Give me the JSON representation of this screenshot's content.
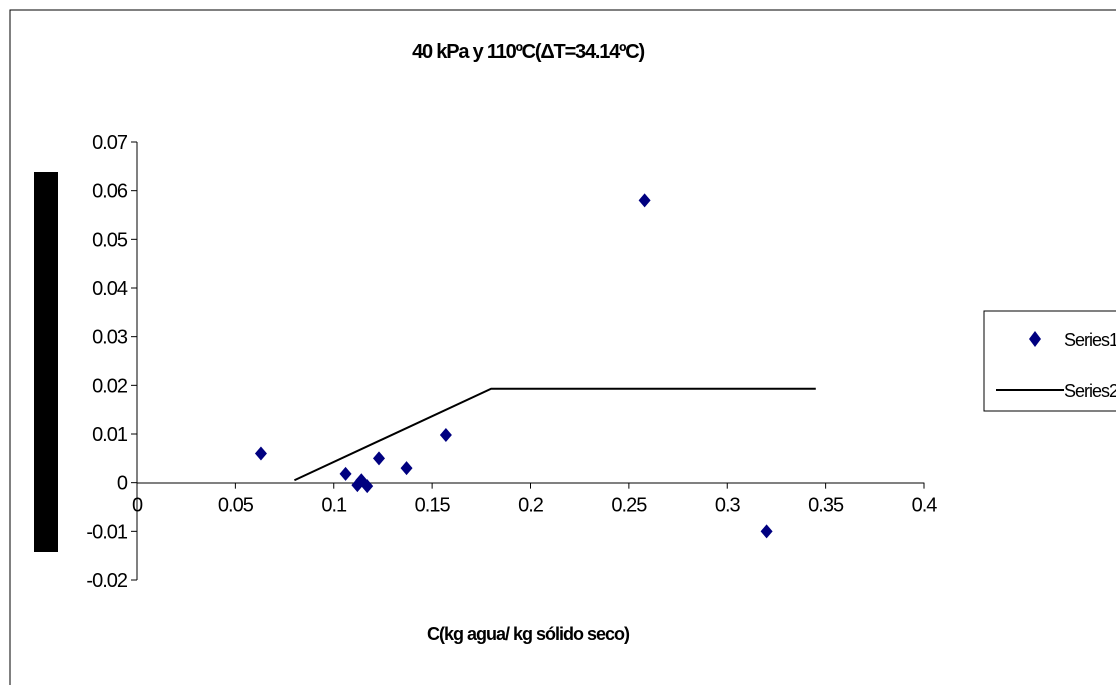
{
  "chart_data": {
    "type": "scatter",
    "title": "40 kPa y 110ºC(ΔT=34.14ºC)",
    "xlabel": "C(kg agua/ kg sólido seco)",
    "ylabel": "",
    "xlim": [
      0,
      0.4
    ],
    "ylim": [
      -0.02,
      0.07
    ],
    "x_ticks": [
      "0",
      "0.05",
      "0.1",
      "0.15",
      "0.2",
      "0.25",
      "0.3",
      "0.35",
      "0.4"
    ],
    "y_ticks": [
      "0.07",
      "0.06",
      "0.05",
      "0.04",
      "0.03",
      "0.02",
      "0.01",
      "0",
      "-0.01",
      "-0.02"
    ],
    "grid": false,
    "legend_position": "right",
    "series": [
      {
        "name": "Series1",
        "kind": "scatter",
        "marker": "diamond",
        "color": "#000080",
        "x": [
          0.063,
          0.106,
          0.112,
          0.114,
          0.117,
          0.123,
          0.137,
          0.157,
          0.258,
          0.32
        ],
        "y": [
          0.006,
          0.0018,
          -0.0005,
          0.0005,
          -0.0007,
          0.005,
          0.003,
          0.0098,
          0.058,
          -0.01
        ]
      },
      {
        "name": "Series2",
        "kind": "line",
        "color": "#000000",
        "x": [
          0.08,
          0.18,
          0.345
        ],
        "y": [
          0.0005,
          0.0193,
          0.0193
        ]
      }
    ]
  }
}
